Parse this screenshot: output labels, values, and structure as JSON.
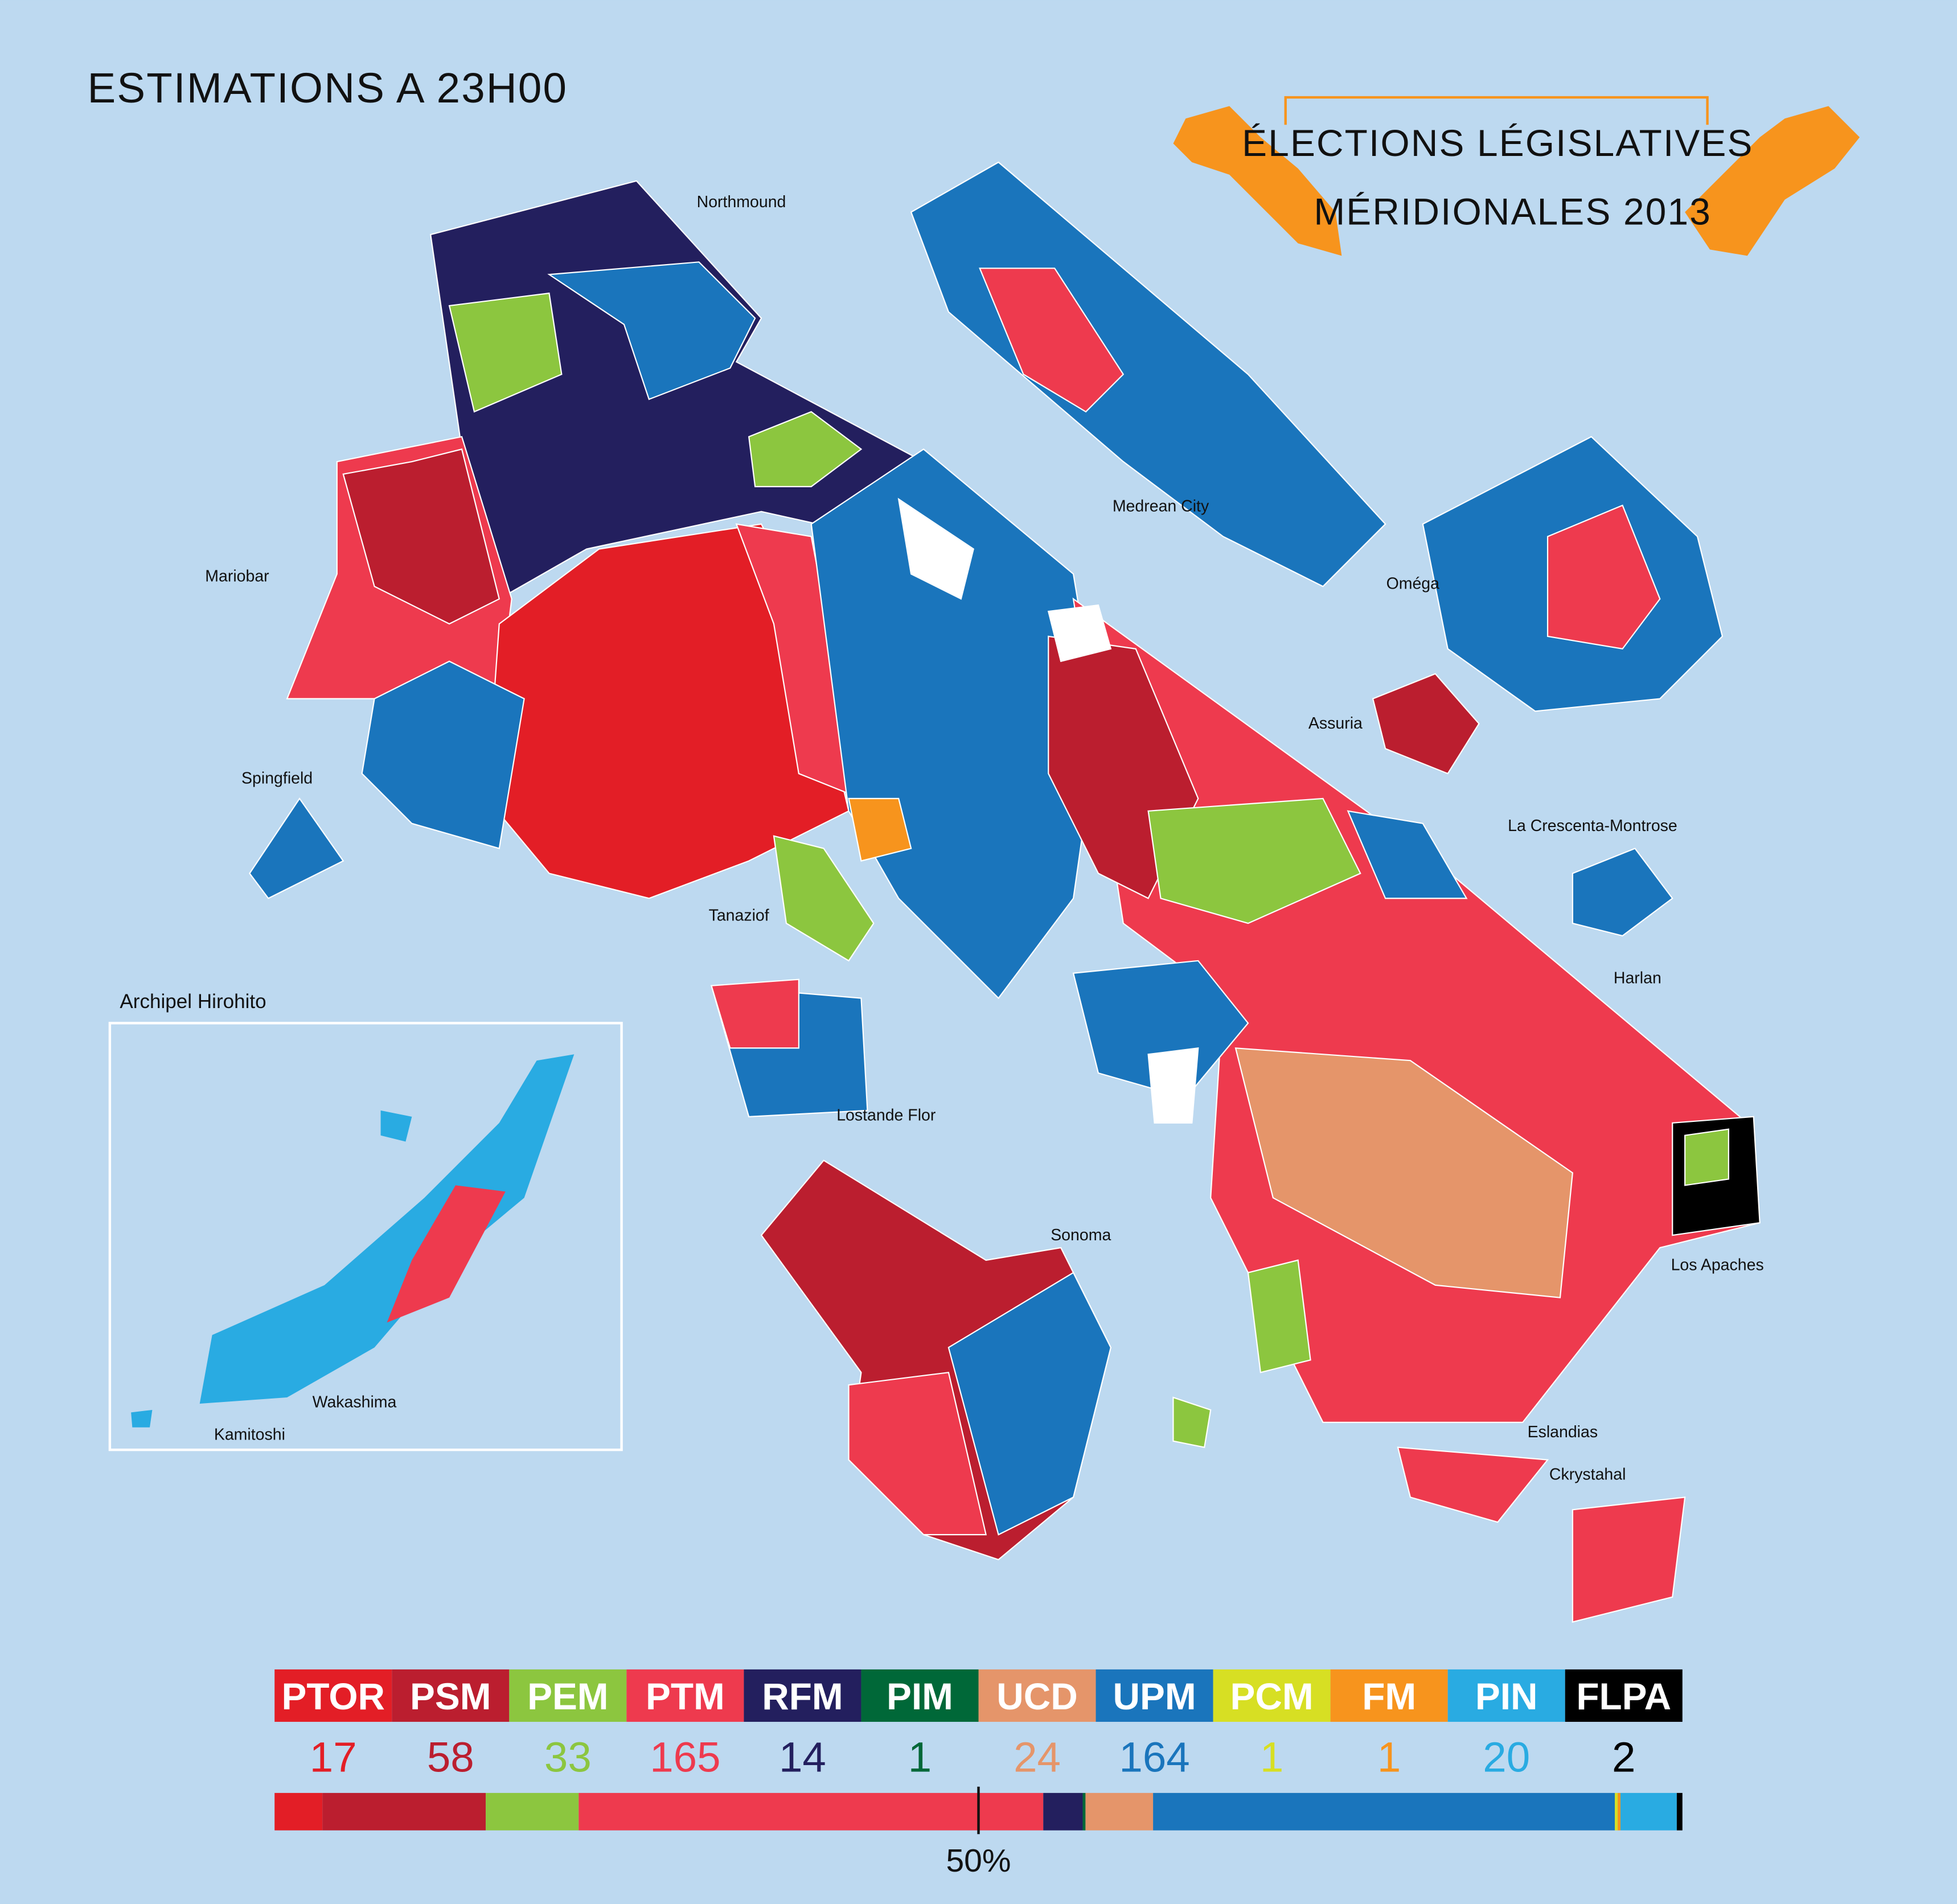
{
  "header": {
    "subtitle": "ESTIMATIONS A 23H00",
    "title_lines": [
      "ÉLECTIONS LÉGISLATIVES",
      "MÉRIDIONALES 2013"
    ]
  },
  "map": {
    "places": [
      "Northmound",
      "Medrean City",
      "Oméga",
      "Mariobar",
      "Assuria",
      "La Crescenta-Montrose",
      "Spingfield",
      "Tanaziof",
      "Harlan",
      "Lostande Flor",
      "Sonoma",
      "Los Apaches",
      "Eslandias",
      "Ckrystahal"
    ],
    "inset_title": "Archipel Hirohito",
    "inset_places": [
      "Wakashima",
      "Kamitoshi"
    ]
  },
  "chart_data": {
    "type": "stacked_bar",
    "categories": [
      "PTOR",
      "PSM",
      "PEM",
      "PTM",
      "RFM",
      "PIM",
      "UCD",
      "UPM",
      "PCM",
      "FM",
      "PIN",
      "FLPA"
    ],
    "values": [
      17,
      58,
      33,
      165,
      14,
      1,
      24,
      164,
      1,
      1,
      20,
      2
    ],
    "colors": [
      "#e31e26",
      "#bb1e2f",
      "#8cc63f",
      "#ee3a4e",
      "#231f5e",
      "#006838",
      "#e5956a",
      "#1a75bc",
      "#d7df23",
      "#f7941d",
      "#29abe2",
      "#000000"
    ],
    "majority_marker": {
      "value": 50,
      "label": "50%"
    }
  }
}
